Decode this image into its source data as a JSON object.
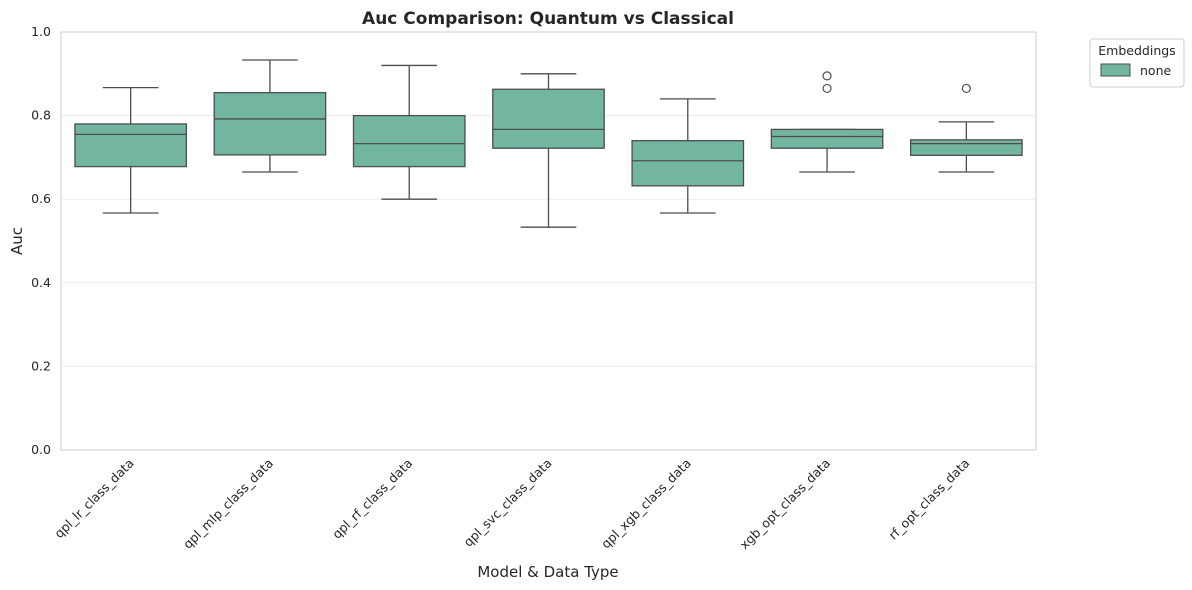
{
  "chart_data": {
    "type": "box",
    "title": "Auc Comparison: Quantum vs Classical",
    "xlabel": "Model & Data Type",
    "ylabel": "Auc",
    "ylim": [
      0.0,
      1.0
    ],
    "yticks": [
      "0.0",
      "0.2",
      "0.4",
      "0.6",
      "0.8",
      "1.0"
    ],
    "grid": true,
    "legend": {
      "title": "Embeddings",
      "placement": "outside-top-right",
      "entries": [
        "none"
      ]
    },
    "colors": {
      "box_fill": "#72b6a1",
      "box_edge": "#4d4d4d",
      "grid": "#ebebeb",
      "frame": "#cccccc"
    },
    "categories": [
      "qpl_lr_class_data",
      "qpl_mlp_class_data",
      "qpl_rf_class_data",
      "qpl_svc_class_data",
      "qpl_xgb_class_data",
      "xgb_opt_class_data",
      "rf_opt_class_data"
    ],
    "series": [
      {
        "name": "none",
        "boxes": [
          {
            "whisker_low": 0.567,
            "q1": 0.678,
            "median": 0.755,
            "q3": 0.78,
            "whisker_high": 0.867,
            "outliers": []
          },
          {
            "whisker_low": 0.665,
            "q1": 0.706,
            "median": 0.792,
            "q3": 0.855,
            "whisker_high": 0.933,
            "outliers": []
          },
          {
            "whisker_low": 0.6,
            "q1": 0.678,
            "median": 0.733,
            "q3": 0.8,
            "whisker_high": 0.92,
            "outliers": []
          },
          {
            "whisker_low": 0.533,
            "q1": 0.722,
            "median": 0.767,
            "q3": 0.863,
            "whisker_high": 0.9,
            "outliers": []
          },
          {
            "whisker_low": 0.567,
            "q1": 0.632,
            "median": 0.692,
            "q3": 0.74,
            "whisker_high": 0.84,
            "outliers": []
          },
          {
            "whisker_low": 0.665,
            "q1": 0.722,
            "median": 0.75,
            "q3": 0.767,
            "whisker_high": 0.767,
            "outliers": [
              0.865,
              0.895
            ]
          },
          {
            "whisker_low": 0.665,
            "q1": 0.705,
            "median": 0.733,
            "q3": 0.742,
            "whisker_high": 0.785,
            "outliers": [
              0.865
            ]
          }
        ]
      }
    ]
  }
}
